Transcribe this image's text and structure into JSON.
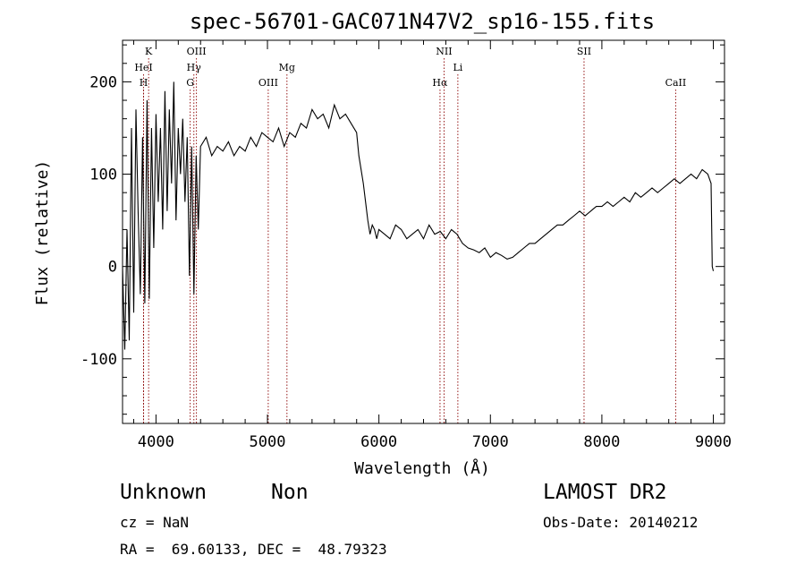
{
  "chart_data": {
    "type": "line",
    "title": "spec-56701-GAC071N47V2_sp16-155.fits",
    "xlabel": "Wavelength (Å)",
    "ylabel": "Flux (relative)",
    "xlim": [
      3700,
      9100
    ],
    "ylim": [
      -170,
      245
    ],
    "x_ticks": [
      4000,
      5000,
      6000,
      7000,
      8000,
      9000
    ],
    "y_ticks": [
      -100,
      0,
      100,
      200
    ],
    "grid": false,
    "line_color": "#000000",
    "marker_color": "#8b0000",
    "series": [
      {
        "x": [
          3700,
          3720,
          3740,
          3760,
          3780,
          3800,
          3820,
          3840,
          3860,
          3880,
          3900,
          3920,
          3940,
          3960,
          3980,
          4000,
          4020,
          4040,
          4060,
          4080,
          4100,
          4120,
          4140,
          4160,
          4180,
          4200,
          4220,
          4240,
          4260,
          4280,
          4300,
          4320,
          4340,
          4360,
          4380,
          4400,
          4450,
          4500,
          4550,
          4600,
          4650,
          4700,
          4750,
          4800,
          4850,
          4900,
          4950,
          5000,
          5050,
          5100,
          5150,
          5200,
          5250,
          5300,
          5350,
          5400,
          5450,
          5500,
          5550,
          5600,
          5650,
          5700,
          5750,
          5800,
          5820,
          5840,
          5860,
          5880,
          5900,
          5920,
          5940,
          5960,
          5980,
          6000,
          6050,
          6100,
          6150,
          6200,
          6250,
          6300,
          6350,
          6400,
          6450,
          6500,
          6550,
          6600,
          6650,
          6700,
          6750,
          6800,
          6850,
          6900,
          6950,
          7000,
          7050,
          7100,
          7150,
          7200,
          7250,
          7300,
          7350,
          7400,
          7450,
          7500,
          7550,
          7600,
          7650,
          7700,
          7750,
          7800,
          7850,
          7900,
          7950,
          8000,
          8050,
          8100,
          8150,
          8200,
          8250,
          8300,
          8350,
          8400,
          8450,
          8500,
          8550,
          8600,
          8650,
          8700,
          8750,
          8800,
          8850,
          8900,
          8950,
          8980,
          8990,
          9000
        ],
        "y": [
          0,
          -90,
          40,
          -80,
          150,
          -50,
          170,
          60,
          -30,
          140,
          -40,
          180,
          -35,
          150,
          20,
          165,
          70,
          150,
          40,
          190,
          60,
          170,
          90,
          200,
          50,
          150,
          100,
          160,
          70,
          140,
          -10,
          130,
          -30,
          120,
          40,
          130,
          140,
          120,
          130,
          125,
          135,
          120,
          130,
          125,
          140,
          130,
          145,
          140,
          135,
          150,
          130,
          145,
          140,
          155,
          150,
          170,
          160,
          165,
          150,
          175,
          160,
          165,
          155,
          145,
          120,
          105,
          90,
          70,
          50,
          35,
          45,
          40,
          30,
          40,
          35,
          30,
          45,
          40,
          30,
          35,
          40,
          30,
          45,
          35,
          38,
          30,
          40,
          35,
          25,
          20,
          18,
          15,
          20,
          10,
          15,
          12,
          8,
          10,
          15,
          20,
          25,
          25,
          30,
          35,
          40,
          45,
          45,
          50,
          55,
          60,
          55,
          60,
          65,
          65,
          70,
          65,
          70,
          75,
          70,
          80,
          75,
          80,
          85,
          80,
          85,
          90,
          95,
          90,
          95,
          100,
          95,
          105,
          100,
          90,
          0,
          -5
        ]
      }
    ],
    "line_markers": [
      {
        "x": 3889,
        "label": "H",
        "row": 4
      },
      {
        "x": 3889,
        "label": "HeI",
        "row": 2
      },
      {
        "x": 3934,
        "label": "K",
        "row": 1
      },
      {
        "x": 4307,
        "label": "G",
        "row": 4
      },
      {
        "x": 4340,
        "label": "Hγ",
        "row": 3
      },
      {
        "x": 4363,
        "label": "OIII",
        "row": 1
      },
      {
        "x": 5007,
        "label": "OIII",
        "row": 4
      },
      {
        "x": 5175,
        "label": "Mg",
        "row": 2
      },
      {
        "x": 6548,
        "label": "Hα",
        "row": 4
      },
      {
        "x": 6584,
        "label": "NII",
        "row": 1
      },
      {
        "x": 6708,
        "label": "Li",
        "row": 2
      },
      {
        "x": 7840,
        "label": "SII",
        "row": 1
      },
      {
        "x": 8662,
        "label": "CaII",
        "row": 4
      }
    ]
  },
  "footer": {
    "object_class": "Unknown",
    "subclass": "Non",
    "survey": "LAMOST DR2",
    "cz": "cz = NaN",
    "obs_date": "Obs-Date: 20140212",
    "coords": "RA =  69.60133, DEC =  48.79323"
  }
}
